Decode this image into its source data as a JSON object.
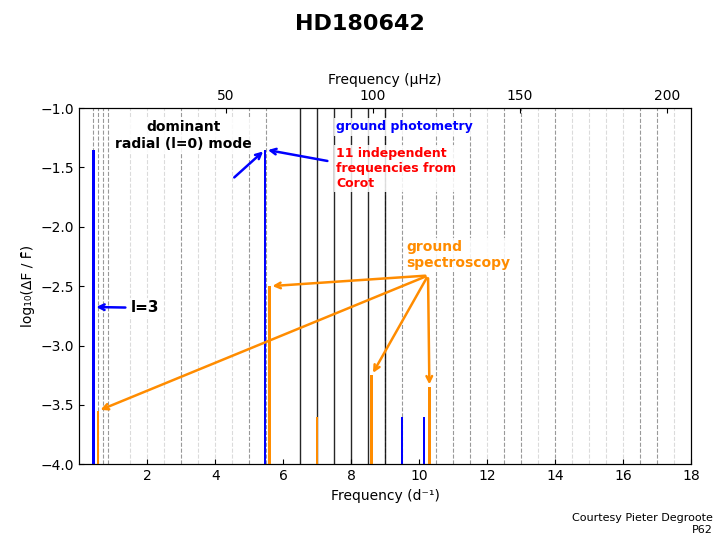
{
  "chart_data": {
    "type": "bar",
    "title": "HD180642",
    "x_label": "Frequency (d⁻¹)",
    "x2_label": "Frequency (μHz)",
    "y_label": "log₁₀(ΔF / F̄)",
    "xlim": [
      0,
      18
    ],
    "xticks": [
      2,
      4,
      6,
      8,
      10,
      12,
      14,
      16,
      18
    ],
    "x2lim": [
      0,
      208.3338
    ],
    "x2ticks": [
      50,
      100,
      150,
      200
    ],
    "ylim": [
      -4.0,
      -1.0
    ],
    "yticks": [
      {
        "value": -4.0,
        "label": "−4.0"
      },
      {
        "value": -3.5,
        "label": "−3.5"
      },
      {
        "value": -3.0,
        "label": "−3.0"
      },
      {
        "value": -2.5,
        "label": "−2.5"
      },
      {
        "value": -2.0,
        "label": "−2.0"
      },
      {
        "value": -1.5,
        "label": "−1.5"
      },
      {
        "value": -1.0,
        "label": "−1.0"
      }
    ],
    "series": [
      {
        "color": "blue",
        "x": [
          0.42,
          5.47,
          9.5,
          10.15
        ],
        "values": [
          -1.35,
          -1.35,
          -3.6,
          -3.6
        ]
      },
      {
        "color": "darkorange",
        "x": [
          0.55,
          5.6,
          7.0,
          8.6,
          10.3
        ],
        "values": [
          -3.55,
          -2.5,
          -3.6,
          -3.25,
          -3.35
        ]
      }
    ],
    "vlines": [
      {
        "color": "gray",
        "line_style": "dashed",
        "x": [
          0.4,
          0.55,
          0.7,
          0.85,
          3.0,
          5.0,
          5.5,
          9.0,
          9.5,
          10.5,
          11.0,
          11.5,
          12.5,
          13.0,
          14.0,
          16.5,
          17.0
        ]
      },
      {
        "color": "lightgray",
        "line_style": "dashed",
        "x": [
          1.5,
          2.0,
          2.5,
          3.5,
          4.0,
          4.5,
          12.0,
          13.5,
          14.5,
          15.0,
          15.5,
          16.0,
          17.5
        ]
      },
      {
        "color": "black",
        "line_style": "solid",
        "x": [
          6.5,
          7.0,
          7.5,
          8.0,
          8.5,
          9.0
        ]
      }
    ],
    "annotations": [
      {
        "text": "dominant\nradial (l=0) mode",
        "color": "black",
        "arrow_color": "blue",
        "arrow_to": [
          5.47
        ]
      },
      {
        "text": "l=3",
        "color": "black",
        "arrow_color": "blue",
        "arrow_to": [
          0.42
        ]
      },
      {
        "text": "ground photometry",
        "color": "blue"
      },
      {
        "text": "11 independent\nfrequencies from\nCorot",
        "color": "red",
        "arrow_color": "blue",
        "arrow_to": [
          5.47
        ]
      },
      {
        "text": "ground\nspectroscopy",
        "color": "darkorange",
        "arrow_color": "darkorange",
        "arrow_to": [
          0.55,
          5.6,
          8.6,
          10.3
        ]
      }
    ],
    "footnote": "Courtesy Pieter Degroote\nP62"
  }
}
